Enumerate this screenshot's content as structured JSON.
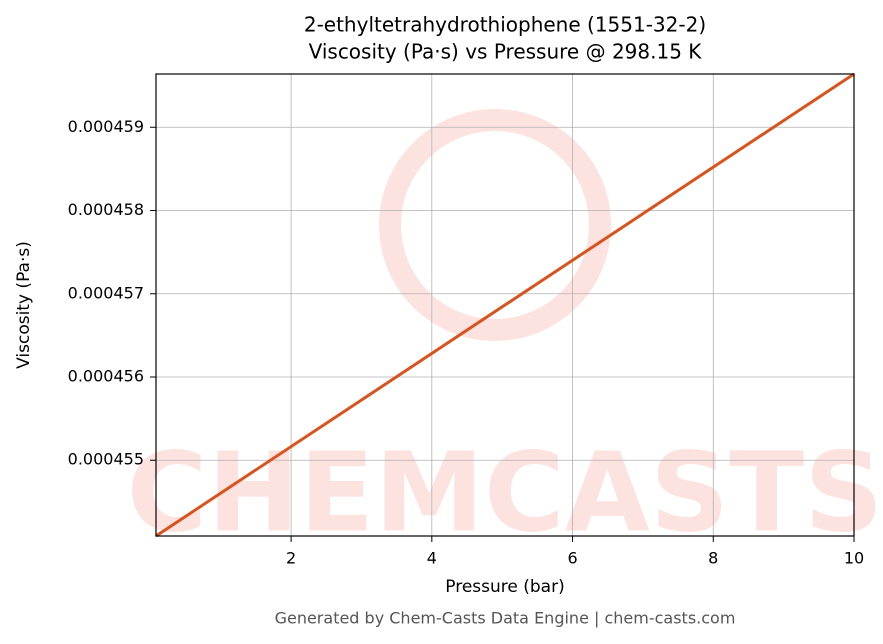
{
  "chart_data": {
    "type": "line",
    "title": "2-ethyltetrahydrothiophene (1551-32-2)",
    "subtitle": "Viscosity (Pa·s) vs Pressure @ 298.15 K",
    "x_label": "Pressure (bar)",
    "y_label": "Viscosity (Pa·s)",
    "x": [
      0.08,
      10
    ],
    "series": [
      {
        "name": "Viscosity",
        "color": "#d9531e",
        "values": [
          0.00045409,
          0.00045964
        ]
      }
    ],
    "xlim": [
      0.08,
      10
    ],
    "ylim": [
      0.00045409,
      0.00045964
    ],
    "xticks": [
      2,
      4,
      6,
      8,
      10
    ],
    "yticks": [
      0.000455,
      0.000456,
      0.000457,
      0.000458,
      0.000459
    ],
    "grid": true,
    "watermark": "CHEMCASTS",
    "footer": "Generated by Chem-Casts Data Engine | chem-casts.com"
  }
}
